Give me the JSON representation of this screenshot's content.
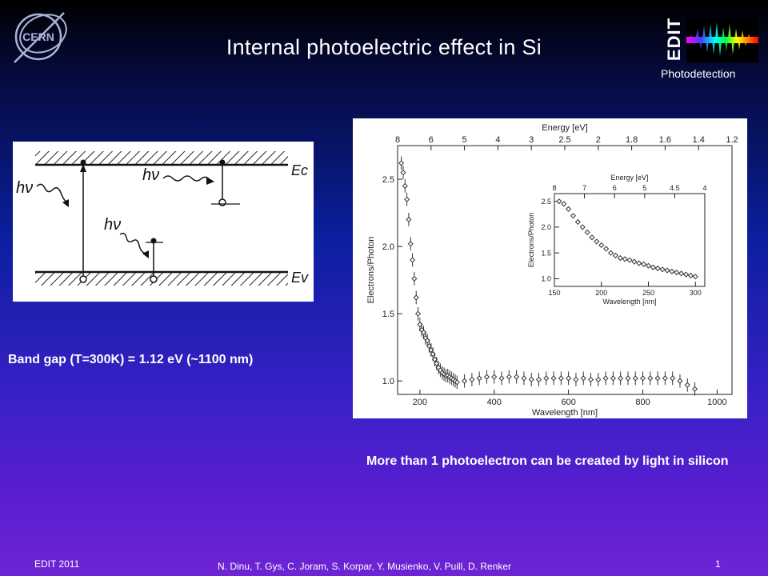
{
  "slide": {
    "title": "Internal photoelectric effect in Si",
    "logo_text": "EDIT",
    "logo_subtitle": "Photodetection",
    "cern_logo_text": "CERN",
    "band_gap_text": "Band gap (T=300K) = 1.12 eV (~1100 nm)",
    "caption": "More than 1 photoelectron  can be created by light in silicon",
    "footer_left": "EDIT 2011",
    "footer_authors": "N. Dinu, T. Gys, C. Joram, S. Korpar, Y. Musienko, V. Puill, D. Renker",
    "slide_number": "1"
  },
  "band_diagram": {
    "labels": {
      "conduction": "Ec",
      "valence": "Ev",
      "photon": "hν"
    }
  },
  "chart_data": [
    {
      "type": "scatter",
      "title": "",
      "xlabel": "Wavelength [nm]",
      "ylabel": "Electrons/Photon",
      "top_axis_label": "Energy [eV]",
      "xlim": [
        140,
        1040
      ],
      "ylim": [
        0.9,
        2.75
      ],
      "xticks": [
        200,
        400,
        600,
        800,
        1000
      ],
      "yticks": [
        1.0,
        1.5,
        2.0,
        2.5
      ],
      "top_ticks": [
        "8",
        "6",
        "5",
        "4",
        "3",
        "2.5",
        "2",
        "1.8",
        "1.6",
        "1.4",
        "1.2"
      ],
      "x": [
        150,
        155,
        160,
        165,
        170,
        175,
        180,
        185,
        190,
        195,
        200,
        205,
        210,
        215,
        220,
        225,
        230,
        235,
        240,
        245,
        250,
        255,
        260,
        265,
        270,
        275,
        280,
        285,
        290,
        295,
        300,
        320,
        340,
        360,
        380,
        400,
        420,
        440,
        460,
        480,
        500,
        520,
        540,
        560,
        580,
        600,
        620,
        640,
        660,
        680,
        700,
        720,
        740,
        760,
        780,
        800,
        820,
        840,
        860,
        880,
        900,
        920,
        940
      ],
      "y": [
        2.62,
        2.55,
        2.45,
        2.35,
        2.2,
        2.02,
        1.9,
        1.76,
        1.62,
        1.5,
        1.42,
        1.38,
        1.36,
        1.32,
        1.3,
        1.26,
        1.23,
        1.2,
        1.16,
        1.13,
        1.1,
        1.08,
        1.06,
        1.05,
        1.04,
        1.04,
        1.03,
        1.02,
        1.01,
        1.0,
        0.99,
        1.0,
        1.01,
        1.02,
        1.03,
        1.03,
        1.02,
        1.03,
        1.03,
        1.02,
        1.01,
        1.01,
        1.02,
        1.02,
        1.02,
        1.02,
        1.01,
        1.02,
        1.01,
        1.01,
        1.02,
        1.02,
        1.02,
        1.02,
        1.02,
        1.02,
        1.02,
        1.02,
        1.02,
        1.02,
        1.0,
        0.97,
        0.94
      ]
    },
    {
      "type": "scatter",
      "title": "",
      "xlabel": "Wavelength [nm]",
      "ylabel": "Electrons/Photon",
      "top_axis_label": "Energy [eV]",
      "xlim": [
        150,
        310
      ],
      "ylim": [
        0.85,
        2.65
      ],
      "xticks": [
        150,
        200,
        250,
        300
      ],
      "yticks": [
        1.0,
        1.5,
        2.0,
        2.5
      ],
      "top_ticks": [
        "8",
        "7",
        "6",
        "5",
        "4.5",
        "4"
      ],
      "x": [
        155,
        160,
        165,
        170,
        175,
        180,
        185,
        190,
        195,
        200,
        205,
        210,
        215,
        220,
        225,
        230,
        235,
        240,
        245,
        250,
        255,
        260,
        265,
        270,
        275,
        280,
        285,
        290,
        295,
        300
      ],
      "y": [
        2.5,
        2.45,
        2.35,
        2.22,
        2.1,
        2.0,
        1.9,
        1.8,
        1.72,
        1.65,
        1.58,
        1.5,
        1.45,
        1.4,
        1.38,
        1.36,
        1.33,
        1.3,
        1.28,
        1.25,
        1.22,
        1.2,
        1.18,
        1.16,
        1.14,
        1.12,
        1.1,
        1.08,
        1.06,
        1.04
      ]
    }
  ]
}
